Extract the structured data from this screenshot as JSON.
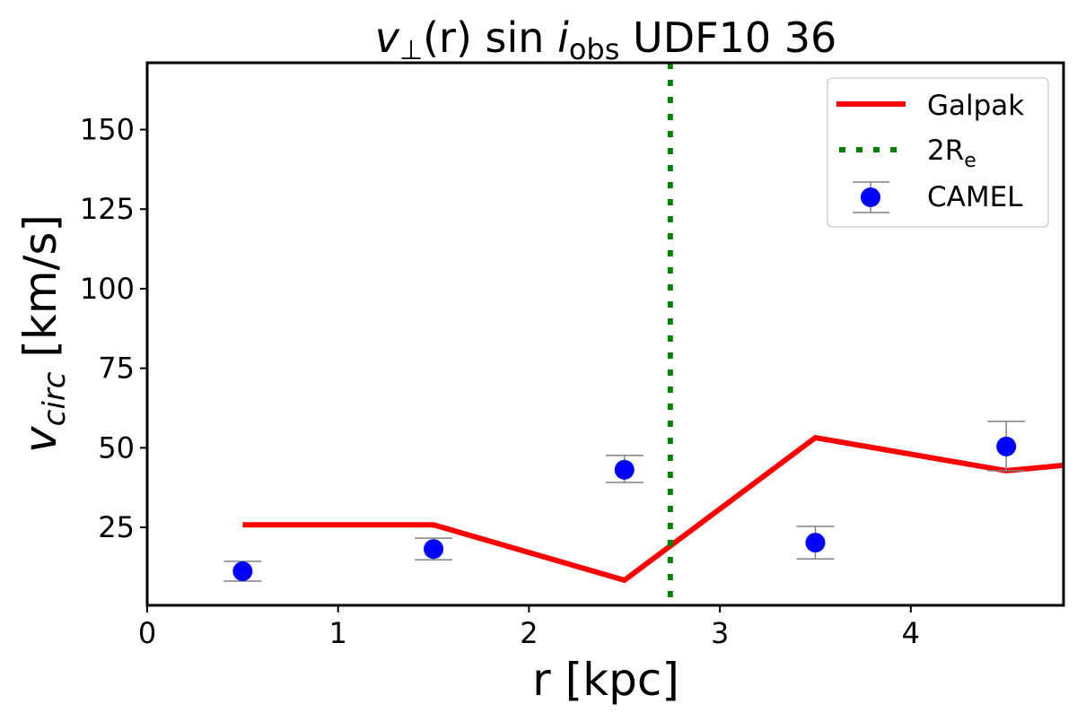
{
  "chart_data": {
    "type": "line",
    "title": {
      "v": "v",
      "perp": "⊥",
      "mid": "(r) sin ",
      "i": "i",
      "sub": "obs",
      "rest": " UDF10 36"
    },
    "xlabel": "r [kpc]",
    "ylabel": {
      "main": "v",
      "sub": "circ",
      "unit": " [km/s]"
    },
    "xlim": [
      0,
      4.8
    ],
    "ylim": [
      0.5,
      171
    ],
    "xticks": [
      0,
      1,
      2,
      3,
      4
    ],
    "yticks": [
      25,
      50,
      75,
      100,
      125,
      150
    ],
    "grid": false,
    "legend_placement": "top-right",
    "series": [
      {
        "name": "Galpak",
        "kind": "line",
        "color": "#ff0000",
        "x": [
          0.5,
          1.5,
          2.5,
          3.5,
          4.5,
          4.8
        ],
        "y": [
          25.8,
          25.8,
          8.4,
          53.2,
          42.8,
          44.5
        ]
      },
      {
        "name": "2R",
        "name_sub": "e",
        "kind": "vline",
        "color": "#008000",
        "x": 2.74
      },
      {
        "name": "CAMEL",
        "kind": "errorbar",
        "color": "#0000ff",
        "errcolor": "#808080",
        "x": [
          0.5,
          1.5,
          2.5,
          3.5,
          4.5
        ],
        "y": [
          11.2,
          18.2,
          43.1,
          20.2,
          50.4
        ],
        "ylow": [
          8.1,
          14.8,
          39.1,
          15.1,
          42.8
        ],
        "yhigh": [
          14.3,
          21.6,
          47.6,
          25.3,
          58.3
        ]
      }
    ]
  }
}
